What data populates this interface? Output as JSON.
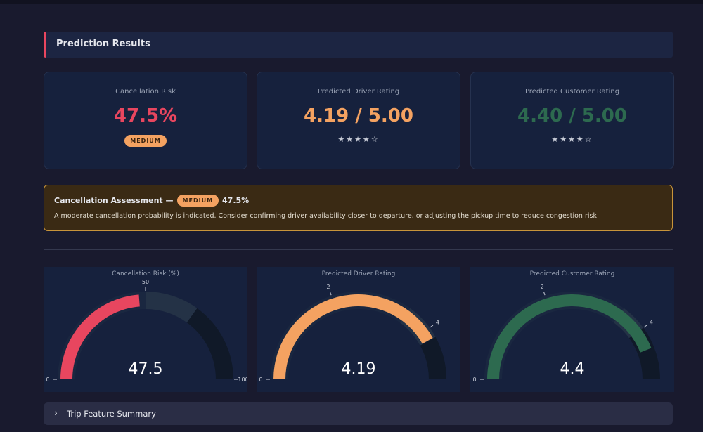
{
  "header": {
    "title": "Prediction Results"
  },
  "cards": [
    {
      "label": "Cancellation Risk",
      "value": "47.5%",
      "badge": "MEDIUM",
      "color": "#e8465f"
    },
    {
      "label": "Predicted Driver Rating",
      "value": "4.19 / 5.00",
      "stars": "★★★★☆",
      "color": "#f4a261"
    },
    {
      "label": "Predicted Customer Rating",
      "value": "4.40 / 5.00",
      "stars": "★★★★☆",
      "color": "#2d6a4f"
    }
  ],
  "assessment": {
    "title": "Cancellation Assessment —",
    "badge": "MEDIUM",
    "value": "47.5%",
    "text": "A moderate cancellation probability is indicated. Consider confirming driver availability closer to departure, or adjusting the pickup time to reduce congestion risk."
  },
  "chart_data": [
    {
      "type": "gauge",
      "title": "Cancellation Risk (%)",
      "value": 47.5,
      "color": "#e8465f",
      "ylim": [
        0,
        100
      ],
      "yticks": [
        0,
        50,
        100
      ],
      "steps": [
        {
          "range": [
            0,
            50
          ],
          "color": "#1a2740"
        },
        {
          "range": [
            50,
            70
          ],
          "color": "#243246"
        },
        {
          "range": [
            70,
            100
          ],
          "color": "#101928"
        }
      ]
    },
    {
      "type": "gauge",
      "title": "Predicted Driver Rating",
      "value": 4.19,
      "color": "#f4a261",
      "ylim": [
        0,
        5
      ],
      "yticks": [
        0,
        2,
        4
      ],
      "steps": [
        {
          "range": [
            0,
            3.5
          ],
          "color": "#1a2740"
        },
        {
          "range": [
            3.5,
            4.2
          ],
          "color": "#243246"
        },
        {
          "range": [
            4.2,
            5
          ],
          "color": "#101928"
        }
      ]
    },
    {
      "type": "gauge",
      "title": "Predicted Customer Rating",
      "value": 4.4,
      "color": "#2d6a4f",
      "ylim": [
        0,
        5
      ],
      "yticks": [
        0,
        2,
        4
      ],
      "steps": [
        {
          "range": [
            0,
            3.5
          ],
          "color": "#1a2740"
        },
        {
          "range": [
            3.5,
            4
          ],
          "color": "#243246"
        },
        {
          "range": [
            4,
            5
          ],
          "color": "#101928"
        }
      ]
    }
  ],
  "expander": {
    "label": "Trip Feature Summary"
  }
}
